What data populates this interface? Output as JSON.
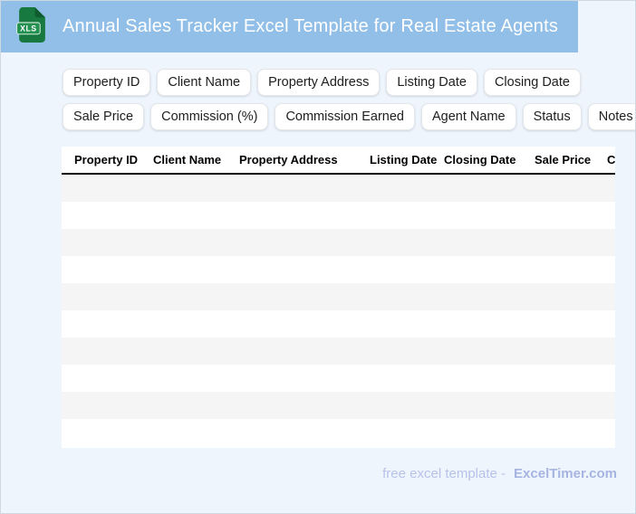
{
  "header": {
    "title": "Annual Sales Tracker Excel Template for Real Estate Agents",
    "background_color": "#92BFE8",
    "icon": {
      "name": "xls-file-icon",
      "label": "XLS",
      "body_color": "#17793F",
      "fold_color": "#0E5C2F",
      "badge_color": "#23914F"
    }
  },
  "field_chips": {
    "row1": [
      "Property ID",
      "Client Name",
      "Property Address",
      "Listing Date",
      "Closing Date"
    ],
    "row2": [
      "Sale Price",
      "Commission (%)",
      "Commission Earned",
      "Agent Name",
      "Status",
      "Notes"
    ]
  },
  "table": {
    "columns": [
      "Property ID",
      "Client Name",
      "Property Address",
      "Listing Date",
      "Closing Date",
      "Sale Price",
      "Commission (%)"
    ],
    "empty_row_count": 10,
    "stripe_color": "#F5F5F5"
  },
  "footer": {
    "text": "free excel template -",
    "brand": "ExcelTimer.com"
  },
  "page": {
    "background_color": "#EFF5FD"
  }
}
